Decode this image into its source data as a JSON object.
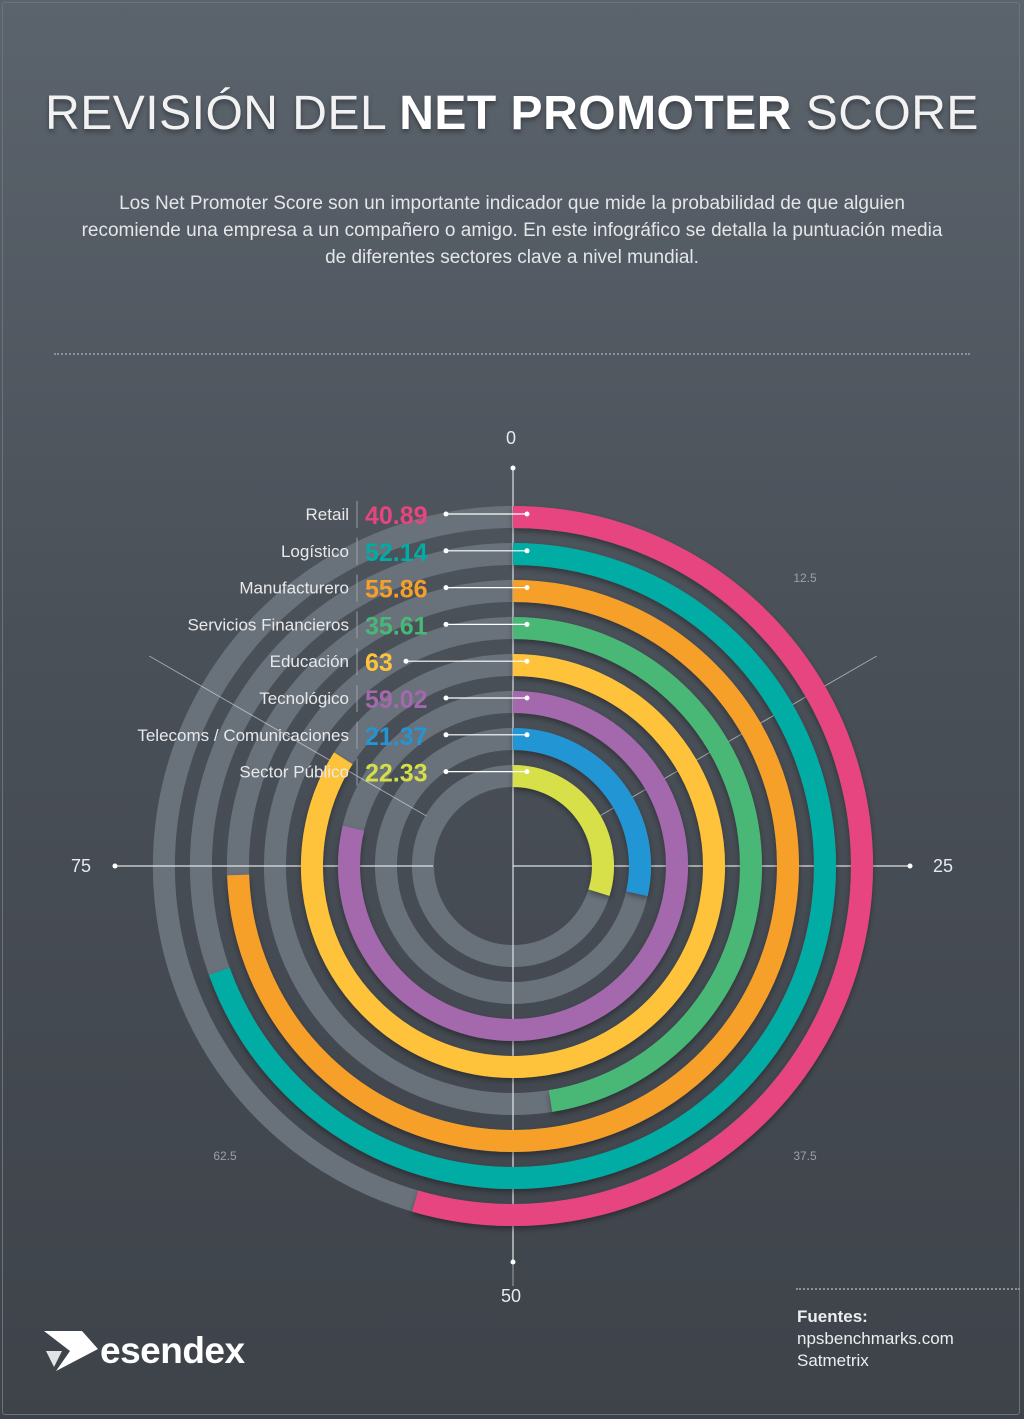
{
  "title": {
    "part1": "REVISIÓN DEL ",
    "part2": "NET PROMOTER",
    "part3": " SCORE"
  },
  "subtitle": "Los Net Promoter Score son un importante indicador que mide la probabilidad de que alguien recomiende una empresa a un compañero o amigo. En este infográfico se detalla la puntuación media de diferentes sectores clave a nivel mundial.",
  "chart_data": {
    "type": "radial-bar",
    "scale_max": 75,
    "start_angle": "top",
    "direction": "clockwise",
    "ticks_major": [
      "0",
      "25",
      "50",
      "75"
    ],
    "ticks_minor": [
      "12.5",
      "37.5",
      "62.5"
    ],
    "categories": [
      "Retail",
      "Logístico",
      "Manufacturero",
      "Servicios Financieros",
      "Educación",
      "Tecnológico",
      "Telecoms / Comunicaciones",
      "Sector Público"
    ],
    "values": [
      40.89,
      52.14,
      55.86,
      35.61,
      63,
      59.02,
      21.37,
      22.33
    ],
    "value_labels": [
      "40.89",
      "52.14",
      "55.86",
      "35.61",
      "63",
      "59.02",
      "21.37",
      "22.33"
    ],
    "colors": [
      "#e6457f",
      "#00aca3",
      "#f6a02c",
      "#48b876",
      "#fec33a",
      "#a468ad",
      "#2395d5",
      "#d7df48"
    ],
    "track_color": "#69717a"
  },
  "sources": {
    "heading": "Fuentes:",
    "items": [
      "npsbenchmarks.com",
      "Satmetrix"
    ]
  },
  "logo": {
    "text": "esendex"
  }
}
